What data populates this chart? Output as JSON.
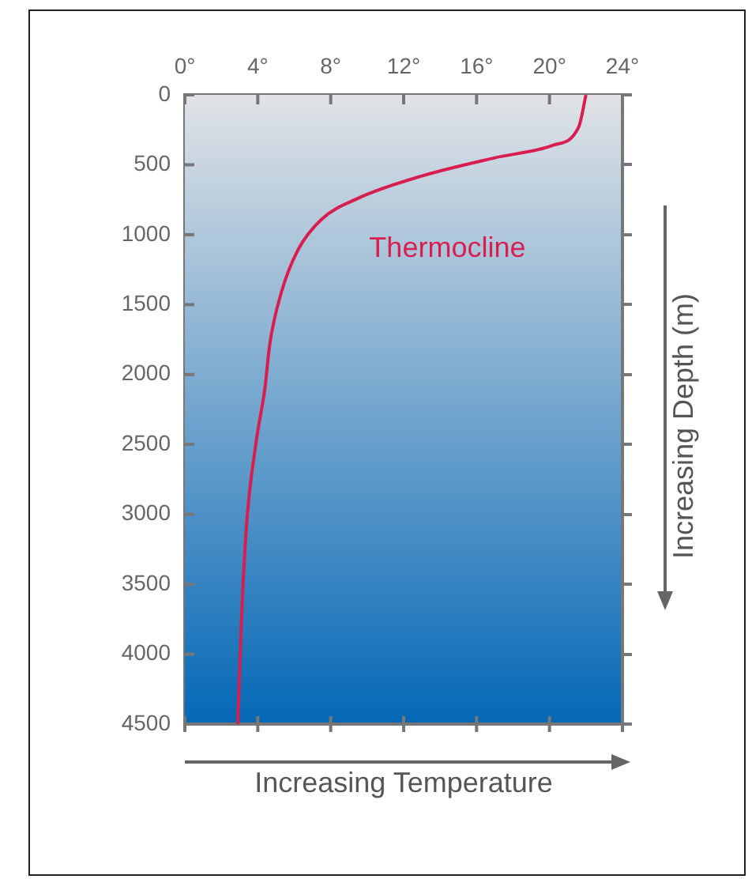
{
  "chart_data": {
    "type": "line",
    "xlabel": "Increasing Temperature",
    "ylabel": "Increasing Depth (m)",
    "series": [
      {
        "color": "#d81e4f",
        "x": [
          22.0,
          21.6,
          20.2,
          17.0,
          13.0,
          9.5,
          7.5,
          6.2,
          5.3,
          4.65,
          4.4,
          3.9,
          3.4,
          3.15,
          2.9
        ],
        "values": [
          0,
          230,
          360,
          450,
          580,
          740,
          890,
          1110,
          1410,
          1790,
          2090,
          2490,
          3050,
          3620,
          4500
        ]
      }
    ],
    "xlim": [
      0,
      24
    ],
    "xticks": [
      {
        "value": 0,
        "label": "0°"
      },
      {
        "value": 4,
        "label": "4°"
      },
      {
        "value": 8,
        "label": "8°"
      },
      {
        "value": 12,
        "label": "12°"
      },
      {
        "value": 16,
        "label": "16°"
      },
      {
        "value": 20,
        "label": "20°"
      },
      {
        "value": 24,
        "label": "24°"
      }
    ],
    "ylim": [
      4500,
      0
    ],
    "yticks": [
      0,
      500,
      1000,
      1500,
      2000,
      2500,
      3000,
      3500,
      4000,
      4500
    ],
    "annotations": [
      "Thermocline"
    ],
    "grid": false,
    "legend": false,
    "marker": "none",
    "line_style": "solid"
  }
}
